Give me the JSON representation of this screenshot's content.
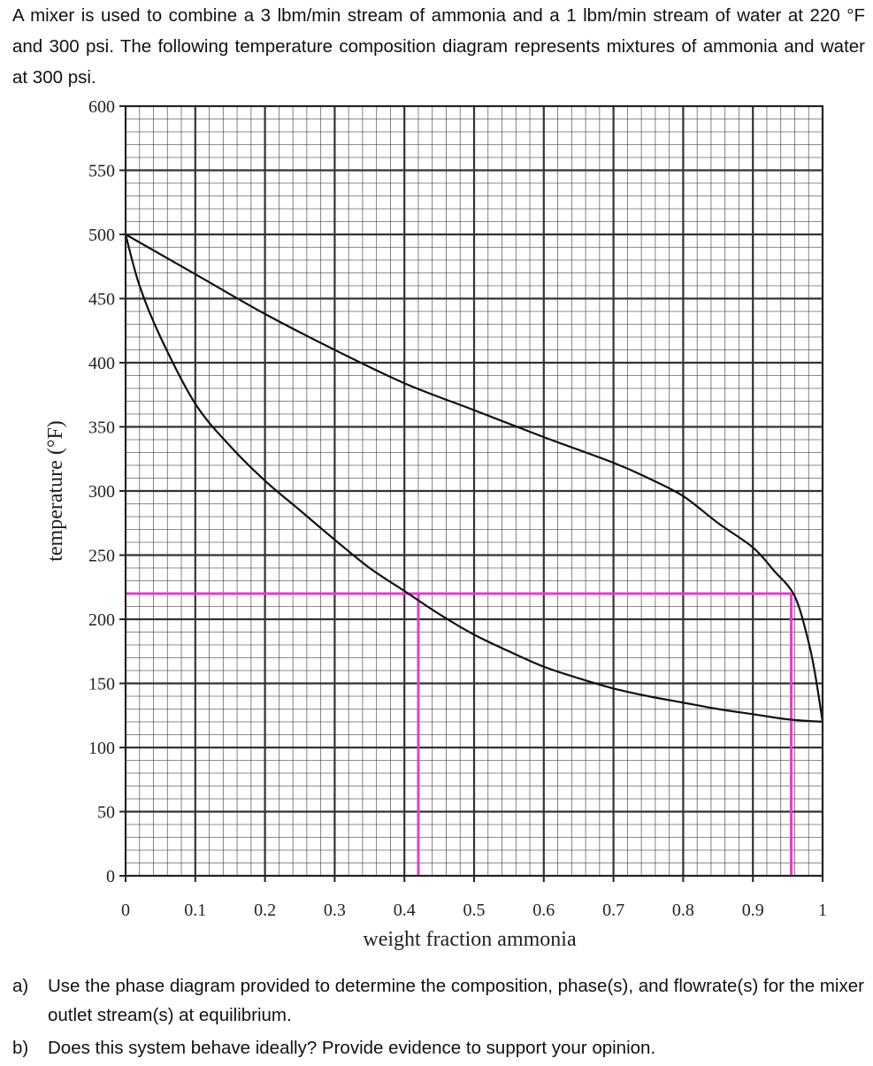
{
  "intro_text": "A mixer is used to combine a 3 lbm/min stream of ammonia and a 1 lbm/min stream of water at 220 °F and 300 psi. The following temperature composition diagram represents mixtures of ammonia and water at 300 psi.",
  "chart_data": {
    "type": "line",
    "title": "",
    "xlabel": "weight fraction ammonia",
    "ylabel": "temperature (°F)",
    "xlim": [
      0,
      1
    ],
    "ylim": [
      0,
      600
    ],
    "xticks": [
      "0",
      "0.1",
      "0.2",
      "0.3",
      "0.4",
      "0.5",
      "0.6",
      "0.7",
      "0.8",
      "0.9",
      "1"
    ],
    "yticks": [
      "0",
      "50",
      "100",
      "150",
      "200",
      "250",
      "300",
      "350",
      "400",
      "450",
      "500",
      "550",
      "600"
    ],
    "grid": true,
    "series": [
      {
        "type": "line",
        "points": [
          [
            0,
            500
          ],
          [
            0.02,
            460
          ],
          [
            0.05,
            420
          ],
          [
            0.1,
            368
          ],
          [
            0.15,
            335
          ],
          [
            0.2,
            308
          ],
          [
            0.25,
            285
          ],
          [
            0.3,
            262
          ],
          [
            0.35,
            240
          ],
          [
            0.4,
            222
          ],
          [
            0.45,
            204
          ],
          [
            0.5,
            188
          ],
          [
            0.55,
            175
          ],
          [
            0.6,
            163
          ],
          [
            0.65,
            154
          ],
          [
            0.7,
            146
          ],
          [
            0.75,
            140
          ],
          [
            0.8,
            135
          ],
          [
            0.85,
            130
          ],
          [
            0.9,
            126
          ],
          [
            0.95,
            122
          ],
          [
            1,
            120
          ]
        ]
      },
      {
        "type": "line",
        "points": [
          [
            0,
            500
          ],
          [
            0.1,
            469
          ],
          [
            0.2,
            438
          ],
          [
            0.3,
            410
          ],
          [
            0.4,
            384
          ],
          [
            0.5,
            363
          ],
          [
            0.6,
            342
          ],
          [
            0.7,
            322
          ],
          [
            0.75,
            310
          ],
          [
            0.8,
            296
          ],
          [
            0.85,
            275
          ],
          [
            0.9,
            256
          ],
          [
            0.93,
            238
          ],
          [
            0.96,
            218
          ],
          [
            0.98,
            182
          ],
          [
            0.99,
            155
          ],
          [
            1,
            120
          ]
        ]
      }
    ],
    "annotations": [
      {
        "type": "hline",
        "y": 220,
        "x_from": 0,
        "x_to": 0.955,
        "color": "#e23fc8"
      },
      {
        "type": "vline",
        "x": 0.42,
        "y_from": 0,
        "y_to": 220,
        "color": "#e23fc8"
      },
      {
        "type": "vline",
        "x": 0.955,
        "y_from": 0,
        "y_to": 220,
        "color": "#e23fc8"
      }
    ],
    "colors": {
      "curve": "#111111",
      "grid": "#333333",
      "highlight": "#e23fc8"
    }
  },
  "questions": [
    {
      "label": "a)",
      "text": "Use the phase diagram provided to determine the composition, phase(s), and flowrate(s) for the mixer outlet stream(s) at equilibrium."
    },
    {
      "label": "b)",
      "text": "Does this system behave ideally? Provide evidence to support your opinion."
    }
  ]
}
